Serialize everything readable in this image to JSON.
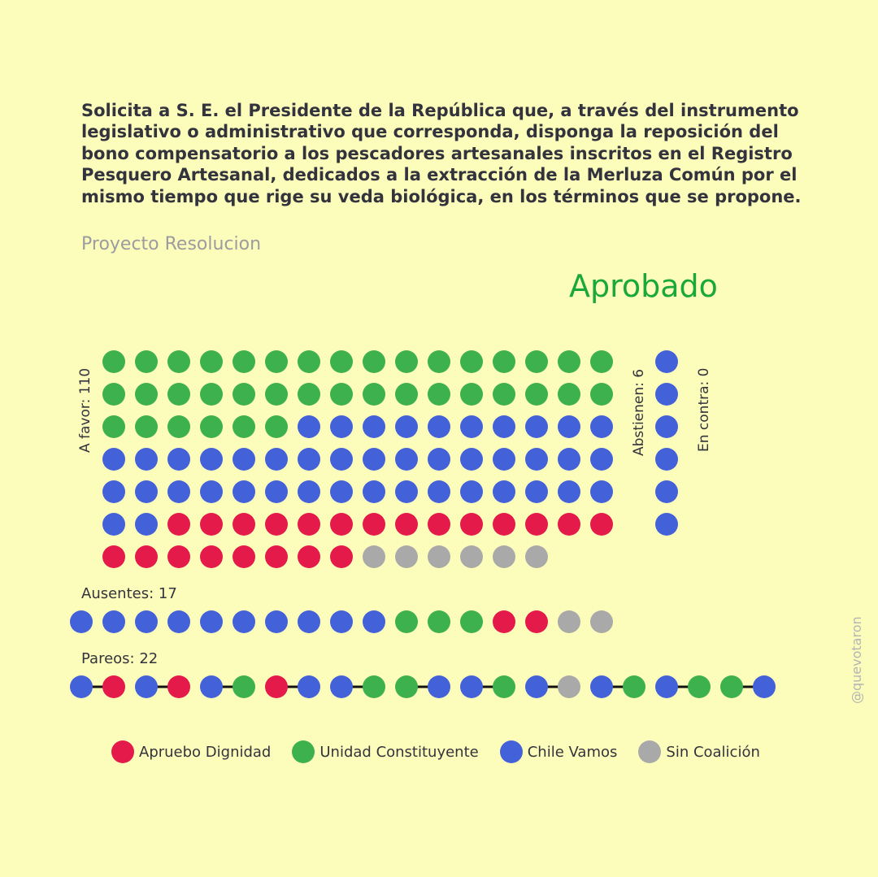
{
  "title": "Solicita a S. E. el Presidente de la República que, a través del instrumento legislativo o administrativo que corresponda, disponga la reposición del bono compensatorio a los pescadores artesanales inscritos en el Registro Pesquero Artesanal, dedicados a la extracción de la Merluza Común por el mismo tiempo que rige su veda biológica, en los términos que se propone.",
  "type_label": "Proyecto Resolucion",
  "result": "Aprobado",
  "coalitions": [
    {
      "key": "AD",
      "name": "Apruebo Dignidad",
      "color": "#e41a4a"
    },
    {
      "key": "UC",
      "name": "Unidad Constituyente",
      "color": "#3cb14e"
    },
    {
      "key": "CV",
      "name": "Chile Vamos",
      "color": "#4361d8"
    },
    {
      "key": "SC",
      "name": "Sin Coalición",
      "color": "#a9a9a9"
    }
  ],
  "votes": {
    "a_favor": {
      "label": "A favor: 110",
      "count": 110,
      "sequence": [
        {
          "key": "UC",
          "n": 38
        },
        {
          "key": "CV",
          "n": 44
        },
        {
          "key": "AD",
          "n": 22
        },
        {
          "key": "SC",
          "n": 6
        }
      ]
    },
    "abstienen": {
      "label": "Abstienen: 6",
      "count": 6,
      "sequence": [
        {
          "key": "CV",
          "n": 6
        }
      ]
    },
    "en_contra": {
      "label": "En contra: 0",
      "count": 0,
      "sequence": []
    },
    "ausentes": {
      "label": "Ausentes: 17",
      "count": 17,
      "sequence": [
        {
          "key": "CV",
          "n": 10
        },
        {
          "key": "UC",
          "n": 3
        },
        {
          "key": "AD",
          "n": 2
        },
        {
          "key": "SC",
          "n": 2
        }
      ]
    },
    "pareos": {
      "label": "Pareos: 22",
      "count": 22,
      "pairs": [
        [
          "CV",
          "AD"
        ],
        [
          "CV",
          "AD"
        ],
        [
          "CV",
          "UC"
        ],
        [
          "AD",
          "CV"
        ],
        [
          "CV",
          "UC"
        ],
        [
          "UC",
          "CV"
        ],
        [
          "CV",
          "UC"
        ],
        [
          "CV",
          "SC"
        ],
        [
          "CV",
          "UC"
        ],
        [
          "CV",
          "UC"
        ],
        [
          "UC",
          "CV"
        ]
      ]
    }
  },
  "credit": "@quevotaron"
}
